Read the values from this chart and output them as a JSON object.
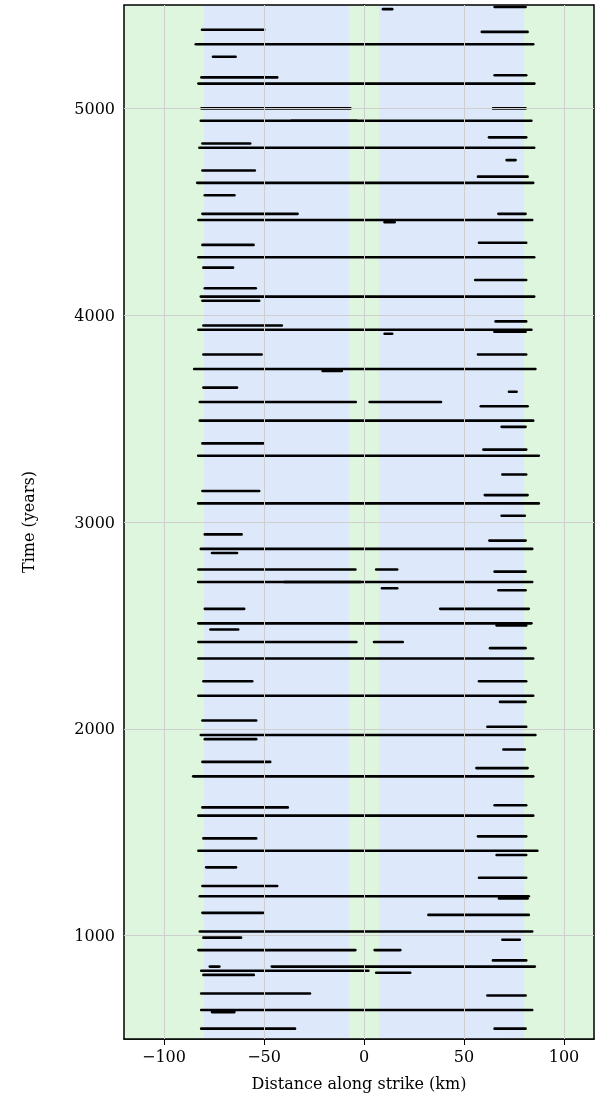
{
  "chart_data": {
    "type": "line",
    "xlabel": "Distance along strike (km)",
    "ylabel": "Time (years)",
    "xlim": [
      -120,
      115
    ],
    "ylim": [
      500,
      5500
    ],
    "xticks": [
      -100,
      -50,
      0,
      50,
      100
    ],
    "yticks": [
      1000,
      2000,
      3000,
      4000,
      5000
    ],
    "grid": true,
    "marker": "none",
    "line_style": "solid",
    "bands": [
      {
        "axis": "x",
        "from": -120,
        "to": -80,
        "color": "#def5de"
      },
      {
        "axis": "x",
        "from": -80,
        "to": -7.5,
        "color": "#dde9fb"
      },
      {
        "axis": "x",
        "from": -7.5,
        "to": 7.5,
        "color": "#def5de"
      },
      {
        "axis": "x",
        "from": 7.5,
        "to": 80,
        "color": "#dde9fb"
      },
      {
        "axis": "x",
        "from": 80,
        "to": 115,
        "color": "#def5de"
      }
    ],
    "series": [
      {
        "x": [
          9.5,
          14.1
        ],
        "values": [
          5480,
          5480
        ],
        "color": "#000000"
      },
      {
        "x": [
          65.3,
          80.8
        ],
        "values": [
          5490,
          5490
        ],
        "color": "#000000"
      },
      {
        "x": [
          -81,
          -49.9
        ],
        "values": [
          5380,
          5380
        ],
        "color": "#000000"
      },
      {
        "x": [
          58.9,
          81.8
        ],
        "values": [
          5370,
          5370
        ],
        "color": "#000000"
      },
      {
        "x": [
          -84.1,
          84.6
        ],
        "values": [
          5310,
          5310
        ],
        "color": "#000000"
      },
      {
        "x": [
          -75.5,
          -64.2
        ],
        "values": [
          5250,
          5250
        ],
        "color": "#000000"
      },
      {
        "x": [
          -81.3,
          -43.4
        ],
        "values": [
          5150,
          5150
        ],
        "color": "#000000"
      },
      {
        "x": [
          65.3,
          81.1
        ],
        "values": [
          5160,
          5160
        ],
        "color": "#000000"
      },
      {
        "x": [
          -82.8,
          85.2
        ],
        "values": [
          5120,
          5120
        ],
        "color": "#000000"
      },
      {
        "x": [
          -81.3,
          -6.8
        ],
        "values": [
          5000,
          5000
        ],
        "color": "#000000"
      },
      {
        "x": [
          64.5,
          80.8
        ],
        "values": [
          5000,
          5000
        ],
        "color": "#000000"
      },
      {
        "x": [
          -81.6,
          83.7
        ],
        "values": [
          4940,
          4940
        ],
        "color": "#000000"
      },
      {
        "x": [
          -36.2,
          -3.8
        ],
        "values": [
          4940,
          4940
        ],
        "color": "#000000"
      },
      {
        "x": [
          62.5,
          81.1
        ],
        "values": [
          4860,
          4860
        ],
        "color": "#000000"
      },
      {
        "x": [
          -80.8,
          -56.9
        ],
        "values": [
          4830,
          4830
        ],
        "color": "#000000"
      },
      {
        "x": [
          -82.3,
          85.1
        ],
        "values": [
          4810,
          4810
        ],
        "color": "#000000"
      },
      {
        "x": [
          71.3,
          75.8
        ],
        "values": [
          4750,
          4750
        ],
        "color": "#000000"
      },
      {
        "x": [
          -80.8,
          -54.6
        ],
        "values": [
          4700,
          4700
        ],
        "color": "#000000"
      },
      {
        "x": [
          57,
          81.8
        ],
        "values": [
          4670,
          4670
        ],
        "color": "#000000"
      },
      {
        "x": [
          -83.4,
          84.6
        ],
        "values": [
          4640,
          4640
        ],
        "color": "#000000"
      },
      {
        "x": [
          -79.6,
          -64.8
        ],
        "values": [
          4580,
          4580
        ],
        "color": "#000000"
      },
      {
        "x": [
          -80.8,
          -33.2
        ],
        "values": [
          4490,
          4490
        ],
        "color": "#000000"
      },
      {
        "x": [
          67.2,
          80.8
        ],
        "values": [
          4490,
          4490
        ],
        "color": "#000000"
      },
      {
        "x": [
          -82.8,
          84.1
        ],
        "values": [
          4460,
          4460
        ],
        "color": "#000000"
      },
      {
        "x": [
          10.3,
          15.3
        ],
        "values": [
          4450,
          4450
        ],
        "color": "#000000"
      },
      {
        "x": [
          -80.8,
          -55.2
        ],
        "values": [
          4340,
          4340
        ],
        "color": "#000000"
      },
      {
        "x": [
          57.5,
          81.1
        ],
        "values": [
          4350,
          4350
        ],
        "color": "#000000"
      },
      {
        "x": [
          -82.8,
          85.1
        ],
        "values": [
          4280,
          4280
        ],
        "color": "#000000"
      },
      {
        "x": [
          -80.3,
          -65.5
        ],
        "values": [
          4230,
          4230
        ],
        "color": "#000000"
      },
      {
        "x": [
          55.6,
          81.1
        ],
        "values": [
          4170,
          4170
        ],
        "color": "#000000"
      },
      {
        "x": [
          -79.6,
          -54.1
        ],
        "values": [
          4130,
          4130
        ],
        "color": "#000000"
      },
      {
        "x": [
          -81.6,
          85.1
        ],
        "values": [
          4090,
          4090
        ],
        "color": "#000000"
      },
      {
        "x": [
          -80.8,
          -52.4
        ],
        "values": [
          4070,
          4070
        ],
        "color": "#000000"
      },
      {
        "x": [
          65.8,
          81.1
        ],
        "values": [
          3970,
          3970
        ],
        "color": "#000000"
      },
      {
        "x": [
          -80.3,
          -41.1
        ],
        "values": [
          3950,
          3950
        ],
        "color": "#000000"
      },
      {
        "x": [
          -82.8,
          83.7
        ],
        "values": [
          3930,
          3930
        ],
        "color": "#000000"
      },
      {
        "x": [
          65.2,
          80.8
        ],
        "values": [
          3920,
          3920
        ],
        "color": "#000000"
      },
      {
        "x": [
          10.3,
          14.1
        ],
        "values": [
          3910,
          3910
        ],
        "color": "#000000"
      },
      {
        "x": [
          -80.3,
          -51.2
        ],
        "values": [
          3810,
          3810
        ],
        "color": "#000000"
      },
      {
        "x": [
          57,
          81.1
        ],
        "values": [
          3810,
          3810
        ],
        "color": "#000000"
      },
      {
        "x": [
          -84.9,
          85.7
        ],
        "values": [
          3740,
          3740
        ],
        "color": "#000000"
      },
      {
        "x": [
          -20.7,
          -11.1
        ],
        "values": [
          3730,
          3730
        ],
        "color": "#000000"
      },
      {
        "x": [
          -80.3,
          -63.5
        ],
        "values": [
          3650,
          3650
        ],
        "color": "#000000"
      },
      {
        "x": [
          72.5,
          76.3
        ],
        "values": [
          3630,
          3630
        ],
        "color": "#000000"
      },
      {
        "x": [
          -82.1,
          -4.1
        ],
        "values": [
          3580,
          3580
        ],
        "color": "#000000"
      },
      {
        "x": [
          2.8,
          38.5
        ],
        "values": [
          3580,
          3580
        ],
        "color": "#000000"
      },
      {
        "x": [
          58.4,
          81.8
        ],
        "values": [
          3560,
          3560
        ],
        "color": "#000000"
      },
      {
        "x": [
          -82.1,
          84.6
        ],
        "values": [
          3490,
          3490
        ],
        "color": "#000000"
      },
      {
        "x": [
          68.8,
          80.8
        ],
        "values": [
          3460,
          3460
        ],
        "color": "#000000"
      },
      {
        "x": [
          -80.8,
          -50.4
        ],
        "values": [
          3380,
          3380
        ],
        "color": "#000000"
      },
      {
        "x": [
          59.7,
          81.1
        ],
        "values": [
          3350,
          3350
        ],
        "color": "#000000"
      },
      {
        "x": [
          -82.9,
          87.4
        ],
        "values": [
          3320,
          3320
        ],
        "color": "#000000"
      },
      {
        "x": [
          69.2,
          81.1
        ],
        "values": [
          3230,
          3230
        ],
        "color": "#000000"
      },
      {
        "x": [
          -80.8,
          -52.4
        ],
        "values": [
          3150,
          3150
        ],
        "color": "#000000"
      },
      {
        "x": [
          60.4,
          81.8
        ],
        "values": [
          3130,
          3130
        ],
        "color": "#000000"
      },
      {
        "x": [
          -82.9,
          87.4
        ],
        "values": [
          3090,
          3090
        ],
        "color": "#000000"
      },
      {
        "x": [
          68.8,
          80.4
        ],
        "values": [
          3030,
          3030
        ],
        "color": "#000000"
      },
      {
        "x": [
          -79.6,
          -61.2
        ],
        "values": [
          2940,
          2940
        ],
        "color": "#000000"
      },
      {
        "x": [
          62.7,
          80.8
        ],
        "values": [
          2910,
          2910
        ],
        "color": "#000000"
      },
      {
        "x": [
          -81.6,
          84.1
        ],
        "values": [
          2870,
          2870
        ],
        "color": "#000000"
      },
      {
        "x": [
          -76,
          -63.5
        ],
        "values": [
          2850,
          2850
        ],
        "color": "#000000"
      },
      {
        "x": [
          -82.8,
          -4.3
        ],
        "values": [
          2770,
          2770
        ],
        "color": "#000000"
      },
      {
        "x": [
          6.1,
          16.6
        ],
        "values": [
          2770,
          2770
        ],
        "color": "#000000"
      },
      {
        "x": [
          65.3,
          80.8
        ],
        "values": [
          2760,
          2760
        ],
        "color": "#000000"
      },
      {
        "x": [
          -82.9,
          84.1
        ],
        "values": [
          2710,
          2710
        ],
        "color": "#000000"
      },
      {
        "x": [
          -39.8,
          -1.8
        ],
        "values": [
          2710,
          2710
        ],
        "color": "#000000"
      },
      {
        "x": [
          9,
          16.6
        ],
        "values": [
          2680,
          2680
        ],
        "color": "#000000"
      },
      {
        "x": [
          67.2,
          80.8
        ],
        "values": [
          2670,
          2670
        ],
        "color": "#000000"
      },
      {
        "x": [
          -79.6,
          -59.9
        ],
        "values": [
          2580,
          2580
        ],
        "color": "#000000"
      },
      {
        "x": [
          38.1,
          82.4
        ],
        "values": [
          2580,
          2580
        ],
        "color": "#000000"
      },
      {
        "x": [
          -82.8,
          83.7
        ],
        "values": [
          2510,
          2510
        ],
        "color": "#000000"
      },
      {
        "x": [
          66.3,
          81.1
        ],
        "values": [
          2500,
          2500
        ],
        "color": "#000000"
      },
      {
        "x": [
          -76.8,
          -62.9
        ],
        "values": [
          2480,
          2480
        ],
        "color": "#000000"
      },
      {
        "x": [
          -82.8,
          -3.8
        ],
        "values": [
          2420,
          2420
        ],
        "color": "#000000"
      },
      {
        "x": [
          5,
          19.4
        ],
        "values": [
          2420,
          2420
        ],
        "color": "#000000"
      },
      {
        "x": [
          63,
          80.8
        ],
        "values": [
          2390,
          2390
        ],
        "color": "#000000"
      },
      {
        "x": [
          -82.8,
          84.6
        ],
        "values": [
          2340,
          2340
        ],
        "color": "#000000"
      },
      {
        "x": [
          -80.3,
          -55.9
        ],
        "values": [
          2230,
          2230
        ],
        "color": "#000000"
      },
      {
        "x": [
          57.5,
          81.1
        ],
        "values": [
          2230,
          2230
        ],
        "color": "#000000"
      },
      {
        "x": [
          -82.8,
          84.6
        ],
        "values": [
          2160,
          2160
        ],
        "color": "#000000"
      },
      {
        "x": [
          68,
          80.8
        ],
        "values": [
          2130,
          2130
        ],
        "color": "#000000"
      },
      {
        "x": [
          -80.8,
          -53.9
        ],
        "values": [
          2040,
          2040
        ],
        "color": "#000000"
      },
      {
        "x": [
          61.7,
          81.1
        ],
        "values": [
          2010,
          2010
        ],
        "color": "#000000"
      },
      {
        "x": [
          -81.6,
          85.7
        ],
        "values": [
          1970,
          1970
        ],
        "color": "#000000"
      },
      {
        "x": [
          -79.6,
          -53.9
        ],
        "values": [
          1950,
          1950
        ],
        "color": "#000000"
      },
      {
        "x": [
          69.7,
          80.4
        ],
        "values": [
          1900,
          1900
        ],
        "color": "#000000"
      },
      {
        "x": [
          -80.8,
          -46.9
        ],
        "values": [
          1840,
          1840
        ],
        "color": "#000000"
      },
      {
        "x": [
          56.2,
          81.8
        ],
        "values": [
          1810,
          1810
        ],
        "color": "#000000"
      },
      {
        "x": [
          -85.4,
          84.6
        ],
        "values": [
          1770,
          1770
        ],
        "color": "#000000"
      },
      {
        "x": [
          -80.8,
          -38.1
        ],
        "values": [
          1620,
          1620
        ],
        "color": "#000000"
      },
      {
        "x": [
          65.3,
          81.1
        ],
        "values": [
          1630,
          1630
        ],
        "color": "#000000"
      },
      {
        "x": [
          -82.8,
          84.6
        ],
        "values": [
          1580,
          1580
        ],
        "color": "#000000"
      },
      {
        "x": [
          -80.3,
          -53.9
        ],
        "values": [
          1470,
          1470
        ],
        "color": "#000000"
      },
      {
        "x": [
          57,
          81.1
        ],
        "values": [
          1480,
          1480
        ],
        "color": "#000000"
      },
      {
        "x": [
          -82.8,
          86.7
        ],
        "values": [
          1410,
          1410
        ],
        "color": "#000000"
      },
      {
        "x": [
          66.3,
          81.1
        ],
        "values": [
          1390,
          1390
        ],
        "color": "#000000"
      },
      {
        "x": [
          -78.9,
          -64
        ],
        "values": [
          1330,
          1330
        ],
        "color": "#000000"
      },
      {
        "x": [
          57.5,
          81.1
        ],
        "values": [
          1280,
          1280
        ],
        "color": "#000000"
      },
      {
        "x": [
          -80.8,
          -43.4
        ],
        "values": [
          1240,
          1240
        ],
        "color": "#000000"
      },
      {
        "x": [
          -82.1,
          82.4
        ],
        "values": [
          1190,
          1190
        ],
        "color": "#000000"
      },
      {
        "x": [
          67.5,
          81.8
        ],
        "values": [
          1180,
          1180
        ],
        "color": "#000000"
      },
      {
        "x": [
          -80.8,
          -50.4
        ],
        "values": [
          1110,
          1110
        ],
        "color": "#000000"
      },
      {
        "x": [
          32.2,
          82.4
        ],
        "values": [
          1100,
          1100
        ],
        "color": "#000000"
      },
      {
        "x": [
          -82.1,
          84.1
        ],
        "values": [
          1020,
          1020
        ],
        "color": "#000000"
      },
      {
        "x": [
          -80.3,
          -61.5
        ],
        "values": [
          990,
          990
        ],
        "color": "#000000"
      },
      {
        "x": [
          69.2,
          77.9
        ],
        "values": [
          980,
          980
        ],
        "color": "#000000"
      },
      {
        "x": [
          -82.8,
          -4.3
        ],
        "values": [
          930,
          930
        ],
        "color": "#000000"
      },
      {
        "x": [
          5.3,
          18.2
        ],
        "values": [
          930,
          930
        ],
        "color": "#000000"
      },
      {
        "x": [
          64.5,
          81.1
        ],
        "values": [
          880,
          880
        ],
        "color": "#000000"
      },
      {
        "x": [
          -77.1,
          -72.3
        ],
        "values": [
          850,
          850
        ],
        "color": "#000000"
      },
      {
        "x": [
          -46.1,
          85.4
        ],
        "values": [
          850,
          850
        ],
        "color": "#000000"
      },
      {
        "x": [
          -81.4,
          2.2
        ],
        "values": [
          830,
          830
        ],
        "color": "#000000"
      },
      {
        "x": [
          -80.3,
          -55.1
        ],
        "values": [
          810,
          810
        ],
        "color": "#000000"
      },
      {
        "x": [
          6.1,
          23.1
        ],
        "values": [
          820,
          820
        ],
        "color": "#000000"
      },
      {
        "x": [
          -81.4,
          -27
        ],
        "values": [
          720,
          720
        ],
        "color": "#000000"
      },
      {
        "x": [
          61.7,
          80.8
        ],
        "values": [
          710,
          710
        ],
        "color": "#000000"
      },
      {
        "x": [
          -81.4,
          84.1
        ],
        "values": [
          640,
          640
        ],
        "color": "#000000"
      },
      {
        "x": [
          -76,
          -64.8
        ],
        "values": [
          630,
          630
        ],
        "color": "#000000"
      },
      {
        "x": [
          -81.4,
          -34.5
        ],
        "values": [
          550,
          550
        ],
        "color": "#000000"
      },
      {
        "x": [
          65.3,
          80.8
        ],
        "values": [
          550,
          550
        ],
        "color": "#000000"
      }
    ]
  }
}
